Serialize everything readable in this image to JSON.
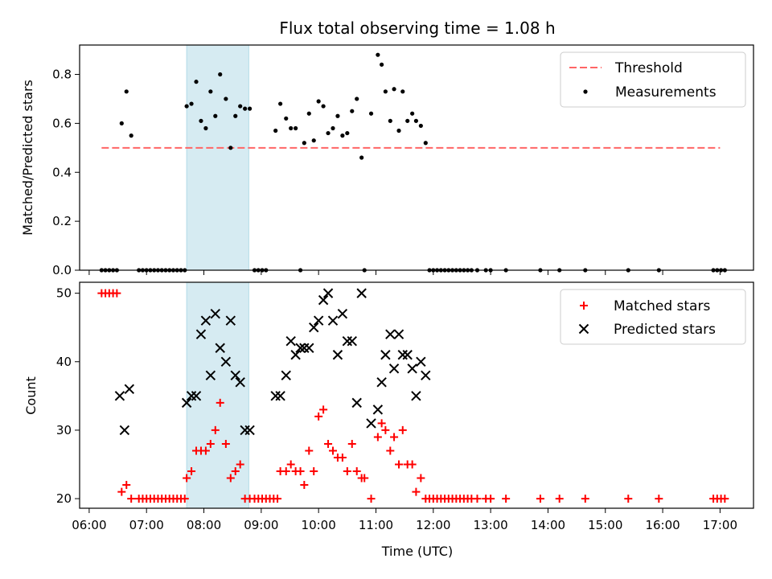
{
  "figure": {
    "title": "Flux total observing time = 1.08 h"
  },
  "colors": {
    "threshold": "#ff6666",
    "measurement": "#000000",
    "matched": "#ff0000",
    "predicted": "#000000",
    "highlight": "#add8e6"
  },
  "chart_data": [
    {
      "type": "scatter",
      "ylabel": "Matched/Predicted stars",
      "ylim": [
        0,
        0.92
      ],
      "xlim": [
        "05:50",
        "17:35"
      ],
      "yticks": [
        0.0,
        0.2,
        0.4,
        0.6,
        0.8
      ],
      "ytick_labels": [
        "0.0",
        "0.2",
        "0.4",
        "0.6",
        "0.8"
      ],
      "legend_position": "top-right",
      "highlight_span": [
        "07:42",
        "08:47"
      ],
      "series": [
        {
          "name": "Threshold",
          "style": "dashed-line",
          "x": [
            "06:13",
            "17:00"
          ],
          "y": [
            0.5,
            0.5
          ]
        },
        {
          "name": "Measurements",
          "style": "dots",
          "points": [
            [
              "06:13",
              0
            ],
            [
              "06:17",
              0
            ],
            [
              "06:21",
              0
            ],
            [
              "06:25",
              0
            ],
            [
              "06:29",
              0
            ],
            [
              "06:34",
              0.6
            ],
            [
              "06:39",
              0.73
            ],
            [
              "06:44",
              0.55
            ],
            [
              "06:52",
              0
            ],
            [
              "06:56",
              0
            ],
            [
              "07:00",
              0
            ],
            [
              "07:04",
              0
            ],
            [
              "07:08",
              0
            ],
            [
              "07:12",
              0
            ],
            [
              "07:16",
              0
            ],
            [
              "07:20",
              0
            ],
            [
              "07:24",
              0
            ],
            [
              "07:28",
              0
            ],
            [
              "07:32",
              0
            ],
            [
              "07:36",
              0
            ],
            [
              "07:40",
              0
            ],
            [
              "07:42",
              0.67
            ],
            [
              "07:47",
              0.68
            ],
            [
              "07:52",
              0.77
            ],
            [
              "07:57",
              0.61
            ],
            [
              "08:02",
              0.58
            ],
            [
              "08:07",
              0.73
            ],
            [
              "08:12",
              0.63
            ],
            [
              "08:17",
              0.8
            ],
            [
              "08:23",
              0.7
            ],
            [
              "08:28",
              0.5
            ],
            [
              "08:33",
              0.63
            ],
            [
              "08:38",
              0.67
            ],
            [
              "08:43",
              0.66
            ],
            [
              "08:48",
              0.66
            ],
            [
              "08:53",
              0
            ],
            [
              "08:57",
              0
            ],
            [
              "09:01",
              0
            ],
            [
              "09:05",
              0
            ],
            [
              "09:15",
              0.57
            ],
            [
              "09:20",
              0.68
            ],
            [
              "09:26",
              0.62
            ],
            [
              "09:31",
              0.58
            ],
            [
              "09:36",
              0.58
            ],
            [
              "09:41",
              0
            ],
            [
              "09:45",
              0.52
            ],
            [
              "09:50",
              0.64
            ],
            [
              "09:55",
              0.53
            ],
            [
              "10:00",
              0.69
            ],
            [
              "10:05",
              0.67
            ],
            [
              "10:10",
              0.56
            ],
            [
              "10:15",
              0.58
            ],
            [
              "10:20",
              0.63
            ],
            [
              "10:25",
              0.55
            ],
            [
              "10:30",
              0.56
            ],
            [
              "10:35",
              0.65
            ],
            [
              "10:40",
              0.7
            ],
            [
              "10:45",
              0.46
            ],
            [
              "10:48",
              0
            ],
            [
              "10:55",
              0.64
            ],
            [
              "11:02",
              0.88
            ],
            [
              "11:06",
              0.84
            ],
            [
              "11:10",
              0.73
            ],
            [
              "11:15",
              0.61
            ],
            [
              "11:19",
              0.74
            ],
            [
              "11:24",
              0.57
            ],
            [
              "11:28",
              0.73
            ],
            [
              "11:33",
              0.61
            ],
            [
              "11:38",
              0.64
            ],
            [
              "11:42",
              0.61
            ],
            [
              "11:47",
              0.59
            ],
            [
              "11:52",
              0.52
            ],
            [
              "11:56",
              0
            ],
            [
              "12:00",
              0
            ],
            [
              "12:04",
              0
            ],
            [
              "12:08",
              0
            ],
            [
              "12:12",
              0
            ],
            [
              "12:16",
              0
            ],
            [
              "12:20",
              0
            ],
            [
              "12:24",
              0
            ],
            [
              "12:28",
              0
            ],
            [
              "12:32",
              0
            ],
            [
              "12:36",
              0
            ],
            [
              "12:40",
              0
            ],
            [
              "12:46",
              0
            ],
            [
              "12:55",
              0
            ],
            [
              "13:00",
              0
            ],
            [
              "13:16",
              0
            ],
            [
              "13:52",
              0
            ],
            [
              "14:12",
              0
            ],
            [
              "14:39",
              0
            ],
            [
              "15:24",
              0
            ],
            [
              "15:56",
              0
            ],
            [
              "16:53",
              0
            ],
            [
              "16:57",
              0
            ],
            [
              "17:01",
              0
            ],
            [
              "17:05",
              0
            ]
          ]
        }
      ]
    },
    {
      "type": "scatter",
      "xlabel": "Time (UTC)",
      "ylabel": "Count",
      "ylim": [
        18.6,
        51.6
      ],
      "xlim": [
        "05:50",
        "17:35"
      ],
      "yticks": [
        20,
        30,
        40,
        50
      ],
      "ytick_labels": [
        "20",
        "30",
        "40",
        "50"
      ],
      "xticks": [
        "06:00",
        "07:00",
        "08:00",
        "09:00",
        "10:00",
        "11:00",
        "12:00",
        "13:00",
        "14:00",
        "15:00",
        "16:00",
        "17:00"
      ],
      "xtick_labels": [
        "06:00",
        "07:00",
        "08:00",
        "09:00",
        "10:00",
        "11:00",
        "12:00",
        "13:00",
        "14:00",
        "15:00",
        "16:00",
        "17:00"
      ],
      "legend_position": "top-right",
      "highlight_span": [
        "07:42",
        "08:47"
      ],
      "series": [
        {
          "name": "Matched stars",
          "style": "plus",
          "points": [
            [
              "06:13",
              50
            ],
            [
              "06:17",
              50
            ],
            [
              "06:21",
              50
            ],
            [
              "06:25",
              50
            ],
            [
              "06:29",
              50
            ],
            [
              "06:34",
              21
            ],
            [
              "06:39",
              22
            ],
            [
              "06:44",
              20
            ],
            [
              "06:52",
              20
            ],
            [
              "06:56",
              20
            ],
            [
              "07:00",
              20
            ],
            [
              "07:04",
              20
            ],
            [
              "07:08",
              20
            ],
            [
              "07:12",
              20
            ],
            [
              "07:16",
              20
            ],
            [
              "07:20",
              20
            ],
            [
              "07:24",
              20
            ],
            [
              "07:28",
              20
            ],
            [
              "07:32",
              20
            ],
            [
              "07:36",
              20
            ],
            [
              "07:40",
              20
            ],
            [
              "07:42",
              23
            ],
            [
              "07:47",
              24
            ],
            [
              "07:52",
              27
            ],
            [
              "07:57",
              27
            ],
            [
              "08:02",
              27
            ],
            [
              "08:07",
              28
            ],
            [
              "08:12",
              30
            ],
            [
              "08:17",
              34
            ],
            [
              "08:23",
              28
            ],
            [
              "08:28",
              23
            ],
            [
              "08:33",
              24
            ],
            [
              "08:38",
              25
            ],
            [
              "08:43",
              20
            ],
            [
              "08:48",
              20
            ],
            [
              "08:53",
              20
            ],
            [
              "08:57",
              20
            ],
            [
              "09:01",
              20
            ],
            [
              "09:05",
              20
            ],
            [
              "09:09",
              20
            ],
            [
              "09:13",
              20
            ],
            [
              "09:17",
              20
            ],
            [
              "09:20",
              24
            ],
            [
              "09:26",
              24
            ],
            [
              "09:31",
              25
            ],
            [
              "09:36",
              24
            ],
            [
              "09:41",
              24
            ],
            [
              "09:45",
              22
            ],
            [
              "09:50",
              27
            ],
            [
              "09:55",
              24
            ],
            [
              "10:00",
              32
            ],
            [
              "10:05",
              33
            ],
            [
              "10:10",
              28
            ],
            [
              "10:15",
              27
            ],
            [
              "10:20",
              26
            ],
            [
              "10:25",
              26
            ],
            [
              "10:30",
              24
            ],
            [
              "10:35",
              28
            ],
            [
              "10:40",
              24
            ],
            [
              "10:45",
              23
            ],
            [
              "10:48",
              23
            ],
            [
              "10:55",
              20
            ],
            [
              "11:02",
              29
            ],
            [
              "11:06",
              31
            ],
            [
              "11:10",
              30
            ],
            [
              "11:15",
              27
            ],
            [
              "11:19",
              29
            ],
            [
              "11:24",
              25
            ],
            [
              "11:28",
              30
            ],
            [
              "11:33",
              25
            ],
            [
              "11:38",
              25
            ],
            [
              "11:42",
              21
            ],
            [
              "11:47",
              23
            ],
            [
              "11:52",
              20
            ],
            [
              "11:56",
              20
            ],
            [
              "12:00",
              20
            ],
            [
              "12:04",
              20
            ],
            [
              "12:08",
              20
            ],
            [
              "12:12",
              20
            ],
            [
              "12:16",
              20
            ],
            [
              "12:20",
              20
            ],
            [
              "12:24",
              20
            ],
            [
              "12:28",
              20
            ],
            [
              "12:32",
              20
            ],
            [
              "12:36",
              20
            ],
            [
              "12:40",
              20
            ],
            [
              "12:46",
              20
            ],
            [
              "12:55",
              20
            ],
            [
              "13:00",
              20
            ],
            [
              "13:16",
              20
            ],
            [
              "13:52",
              20
            ],
            [
              "14:12",
              20
            ],
            [
              "14:39",
              20
            ],
            [
              "15:24",
              20
            ],
            [
              "15:56",
              20
            ],
            [
              "16:53",
              20
            ],
            [
              "16:57",
              20
            ],
            [
              "17:01",
              20
            ],
            [
              "17:05",
              20
            ]
          ]
        },
        {
          "name": "Predicted stars",
          "style": "x",
          "points": [
            [
              "06:32",
              35
            ],
            [
              "06:37",
              30
            ],
            [
              "06:42",
              36
            ],
            [
              "07:42",
              34
            ],
            [
              "07:47",
              35
            ],
            [
              "07:52",
              35
            ],
            [
              "07:57",
              44
            ],
            [
              "08:02",
              46
            ],
            [
              "08:07",
              38
            ],
            [
              "08:12",
              47
            ],
            [
              "08:17",
              42
            ],
            [
              "08:23",
              40
            ],
            [
              "08:28",
              46
            ],
            [
              "08:33",
              38
            ],
            [
              "08:38",
              37
            ],
            [
              "08:43",
              30
            ],
            [
              "08:48",
              30
            ],
            [
              "09:15",
              35
            ],
            [
              "09:20",
              35
            ],
            [
              "09:26",
              38
            ],
            [
              "09:31",
              43
            ],
            [
              "09:36",
              41
            ],
            [
              "09:41",
              42
            ],
            [
              "09:45",
              42
            ],
            [
              "09:50",
              42
            ],
            [
              "09:55",
              45
            ],
            [
              "10:00",
              46
            ],
            [
              "10:05",
              49
            ],
            [
              "10:10",
              50
            ],
            [
              "10:15",
              46
            ],
            [
              "10:20",
              41
            ],
            [
              "10:25",
              47
            ],
            [
              "10:30",
              43
            ],
            [
              "10:35",
              43
            ],
            [
              "10:40",
              34
            ],
            [
              "10:45",
              50
            ],
            [
              "10:55",
              31
            ],
            [
              "11:02",
              33
            ],
            [
              "11:06",
              37
            ],
            [
              "11:10",
              41
            ],
            [
              "11:15",
              44
            ],
            [
              "11:19",
              39
            ],
            [
              "11:24",
              44
            ],
            [
              "11:28",
              41
            ],
            [
              "11:33",
              41
            ],
            [
              "11:38",
              39
            ],
            [
              "11:42",
              35
            ],
            [
              "11:47",
              40
            ],
            [
              "11:52",
              38
            ]
          ]
        }
      ]
    }
  ]
}
